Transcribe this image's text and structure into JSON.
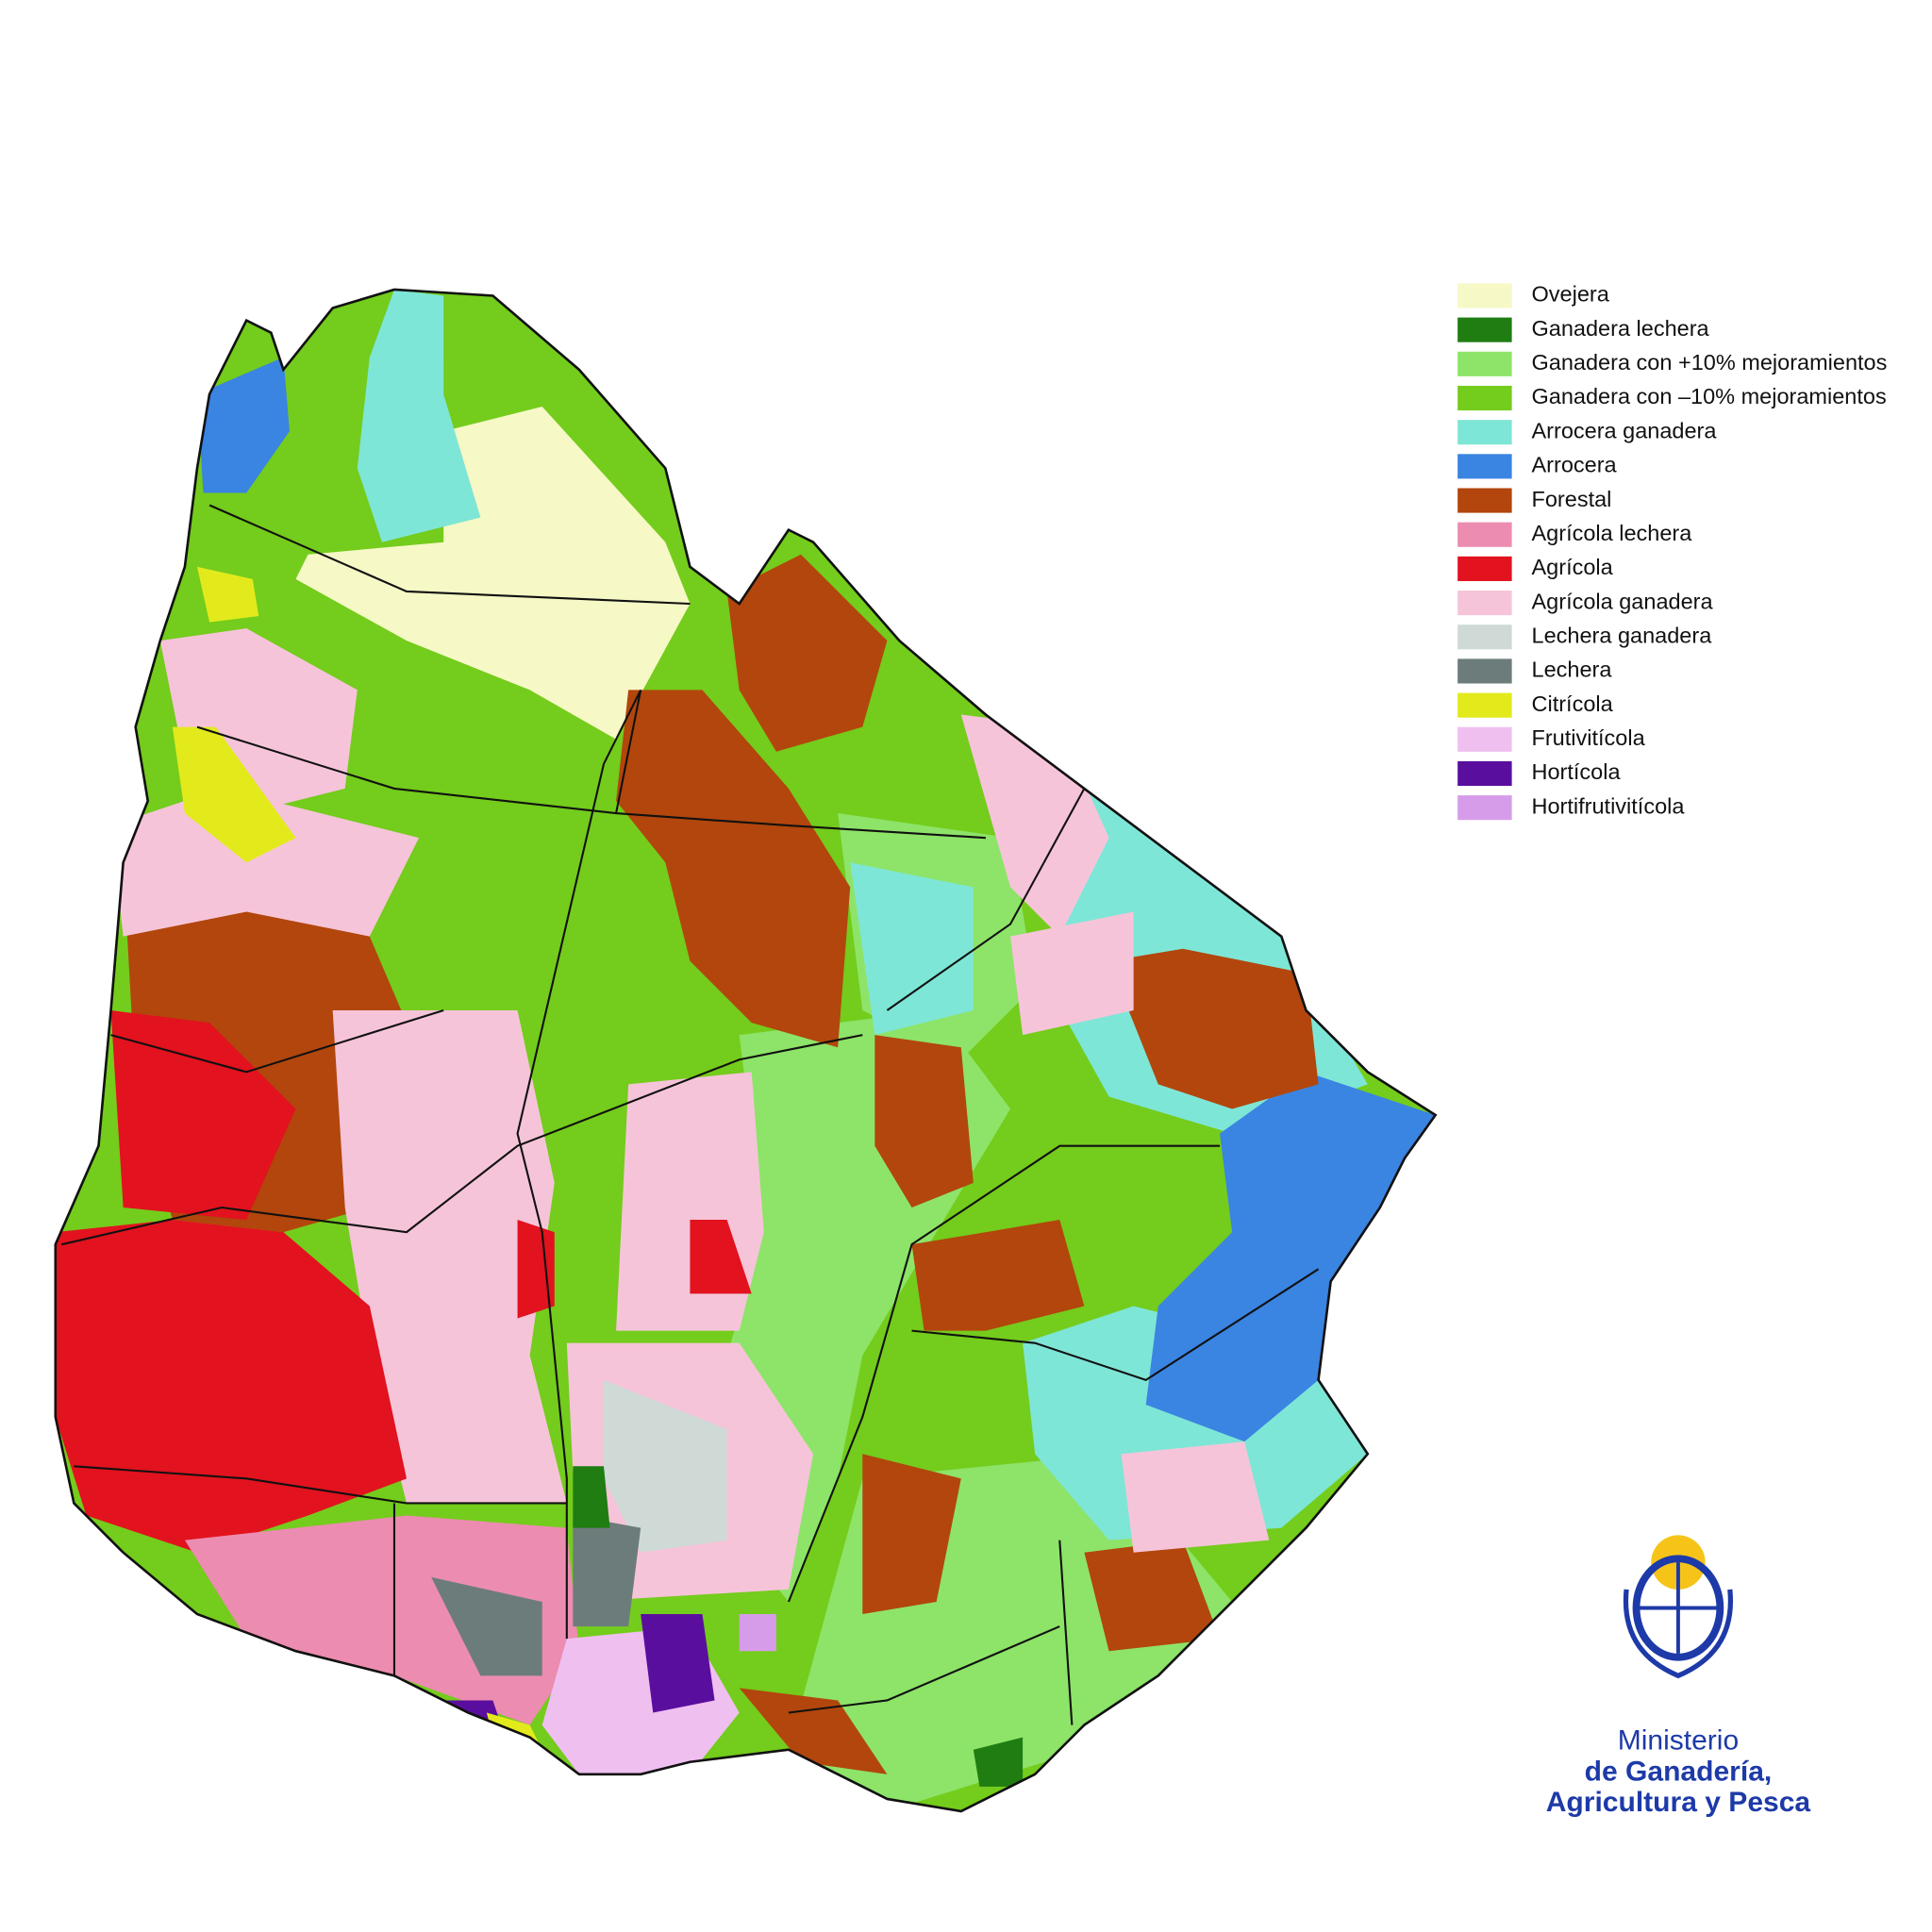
{
  "legend": {
    "items": [
      {
        "label": "Ovejera",
        "color": "#f6f8c6"
      },
      {
        "label": "Ganadera lechera",
        "color": "#1f7d12"
      },
      {
        "label": "Ganadera con +10% mejoramientos",
        "color": "#8de468"
      },
      {
        "label": "Ganadera con –10% mejoramientos",
        "color": "#74cc1c"
      },
      {
        "label": "Arrocera ganadera",
        "color": "#7ee6d6"
      },
      {
        "label": "Arrocera",
        "color": "#3a84e2"
      },
      {
        "label": "Forestal",
        "color": "#b2460c"
      },
      {
        "label": "Agrícola lechera",
        "color": "#ec8cb0"
      },
      {
        "label": "Agrícola",
        "color": "#e2121e"
      },
      {
        "label": "Agrícola ganadera",
        "color": "#f6c4d9"
      },
      {
        "label": "Lechera ganadera",
        "color": "#cfd9d6"
      },
      {
        "label": "Lechera",
        "color": "#6c7c7b"
      },
      {
        "label": "Citrícola",
        "color": "#e2ea1c"
      },
      {
        "label": "Frutivitícola",
        "color": "#efbff0"
      },
      {
        "label": "Hortícola",
        "color": "#5a0e9e"
      },
      {
        "label": "Hortifrutivitícola",
        "color": "#d69cea"
      }
    ]
  },
  "logo": {
    "lines": [
      "Ministerio",
      "de Ganadería,",
      "Agricultura y Pesca"
    ]
  }
}
